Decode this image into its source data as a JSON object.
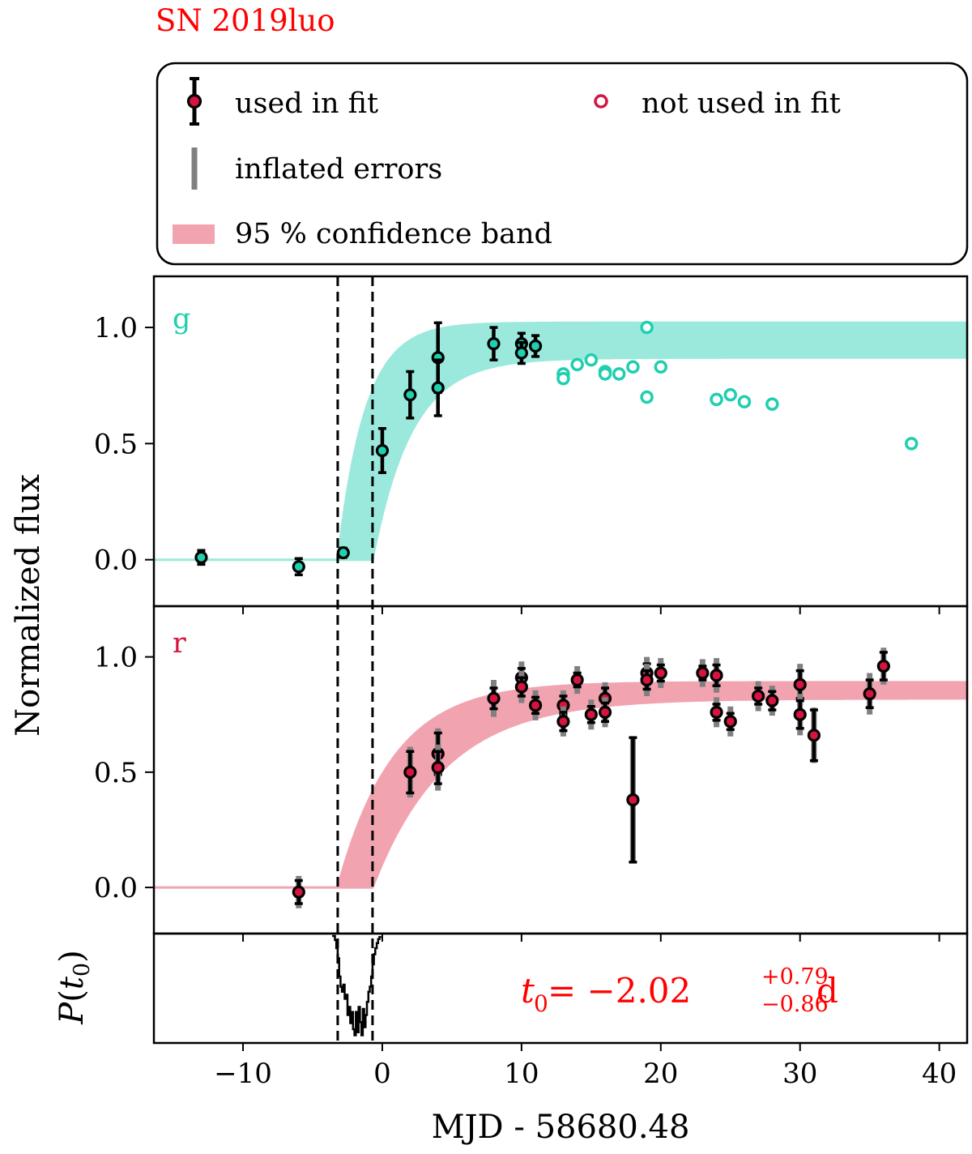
{
  "title": "SN 2019luo",
  "colors": {
    "title": "#ff0000",
    "g_point": "#1fcfb0",
    "g_band": "#9be9dc",
    "r_point": "#d5143f",
    "r_band": "#f2a3b0",
    "errorbar": "#000000",
    "inflated": "#808080",
    "annotation": "#ff0000"
  },
  "legend": {
    "used": "used in fit",
    "not_used": "not used in fit",
    "inflated": "inflated errors",
    "band": "95 % confidence band"
  },
  "chart_data": [
    {
      "type": "scatter",
      "panel": "g",
      "label": "g",
      "xlim": [
        -16.4,
        42
      ],
      "ylim": [
        -0.2,
        1.22
      ],
      "yticks": [
        0.0,
        0.5,
        1.0
      ],
      "ytick_labels": [
        "0.0",
        "0.5",
        "1.0"
      ],
      "used_in_fit": [
        {
          "x": -13.0,
          "y": 0.01,
          "err": 0.03
        },
        {
          "x": -6.0,
          "y": -0.03,
          "err": 0.035
        },
        {
          "x": -2.8,
          "y": 0.03,
          "err": 0.02
        },
        {
          "x": 0.0,
          "y": 0.47,
          "err": 0.095
        },
        {
          "x": 2.0,
          "y": 0.71,
          "err": 0.1
        },
        {
          "x": 4.0,
          "y": 0.87,
          "err": 0.15
        },
        {
          "x": 4.0,
          "y": 0.74,
          "err": 0.12
        },
        {
          "x": 8.0,
          "y": 0.93,
          "err": 0.07
        },
        {
          "x": 10.0,
          "y": 0.93,
          "err": 0.045
        },
        {
          "x": 10.0,
          "y": 0.89,
          "err": 0.045
        },
        {
          "x": 11.0,
          "y": 0.92,
          "err": 0.045
        }
      ],
      "not_used": [
        {
          "x": 13.0,
          "y": 0.8
        },
        {
          "x": 13.0,
          "y": 0.78
        },
        {
          "x": 14.0,
          "y": 0.84
        },
        {
          "x": 15.0,
          "y": 0.86
        },
        {
          "x": 16.0,
          "y": 0.81
        },
        {
          "x": 16.0,
          "y": 0.8
        },
        {
          "x": 17.0,
          "y": 0.8
        },
        {
          "x": 18.0,
          "y": 0.83
        },
        {
          "x": 19.0,
          "y": 1.0
        },
        {
          "x": 19.0,
          "y": 0.7
        },
        {
          "x": 20.0,
          "y": 0.83
        },
        {
          "x": 24.0,
          "y": 0.69
        },
        {
          "x": 25.0,
          "y": 0.71
        },
        {
          "x": 26.0,
          "y": 0.68
        },
        {
          "x": 28.0,
          "y": 0.67
        },
        {
          "x": 38.0,
          "y": 0.5
        }
      ],
      "band": {
        "t_early": -3.2,
        "t_late": -0.7,
        "plateau_lower": 0.87,
        "plateau_upper": 1.02,
        "tau_lower": 2.8,
        "tau_upper": 2.0
      }
    },
    {
      "type": "scatter",
      "panel": "r",
      "label": "r",
      "xlim": [
        -16.4,
        42
      ],
      "ylim": [
        -0.2,
        1.22
      ],
      "yticks": [
        0.0,
        0.5,
        1.0
      ],
      "ytick_labels": [
        "0.0",
        "0.5",
        "1.0"
      ],
      "used_in_fit": [
        {
          "x": -6.0,
          "y": -0.02,
          "err": 0.05,
          "inflated": 0.07
        },
        {
          "x": 2.0,
          "y": 0.5,
          "err": 0.09,
          "inflated": 0.11
        },
        {
          "x": 4.0,
          "y": 0.58,
          "err": 0.09,
          "inflated": 0.11
        },
        {
          "x": 4.0,
          "y": 0.52,
          "err": 0.07,
          "inflated": 0.1
        },
        {
          "x": 8.0,
          "y": 0.82,
          "err": 0.045,
          "inflated": 0.08
        },
        {
          "x": 10.0,
          "y": 0.91,
          "err": 0.04,
          "inflated": 0.07
        },
        {
          "x": 10.0,
          "y": 0.87,
          "err": 0.04,
          "inflated": 0.07
        },
        {
          "x": 11.0,
          "y": 0.79,
          "err": 0.035,
          "inflated": 0.065
        },
        {
          "x": 13.0,
          "y": 0.79,
          "err": 0.04,
          "inflated": 0.065
        },
        {
          "x": 13.0,
          "y": 0.72,
          "err": 0.04,
          "inflated": 0.065
        },
        {
          "x": 14.0,
          "y": 0.9,
          "err": 0.03,
          "inflated": 0.06
        },
        {
          "x": 15.0,
          "y": 0.75,
          "err": 0.035,
          "inflated": 0.065
        },
        {
          "x": 16.0,
          "y": 0.82,
          "err": 0.045,
          "inflated": 0.07
        },
        {
          "x": 16.0,
          "y": 0.76,
          "err": 0.04,
          "inflated": 0.065
        },
        {
          "x": 18.0,
          "y": 0.38,
          "err": 0.27,
          "inflated": 0.27
        },
        {
          "x": 19.0,
          "y": 0.93,
          "err": 0.04,
          "inflated": 0.07
        },
        {
          "x": 19.0,
          "y": 0.9,
          "err": 0.04,
          "inflated": 0.07
        },
        {
          "x": 20.0,
          "y": 0.93,
          "err": 0.035,
          "inflated": 0.065
        },
        {
          "x": 23.0,
          "y": 0.93,
          "err": 0.03,
          "inflated": 0.06
        },
        {
          "x": 24.0,
          "y": 0.92,
          "err": 0.045,
          "inflated": 0.075
        },
        {
          "x": 24.0,
          "y": 0.76,
          "err": 0.035,
          "inflated": 0.065
        },
        {
          "x": 25.0,
          "y": 0.72,
          "err": 0.035,
          "inflated": 0.065
        },
        {
          "x": 27.0,
          "y": 0.83,
          "err": 0.035,
          "inflated": 0.065
        },
        {
          "x": 28.0,
          "y": 0.81,
          "err": 0.04,
          "inflated": 0.065
        },
        {
          "x": 30.0,
          "y": 0.88,
          "err": 0.06,
          "inflated": 0.09
        },
        {
          "x": 30.0,
          "y": 0.75,
          "err": 0.06,
          "inflated": 0.09
        },
        {
          "x": 31.0,
          "y": 0.66,
          "err": 0.11,
          "inflated": 0.12
        },
        {
          "x": 35.0,
          "y": 0.84,
          "err": 0.06,
          "inflated": 0.09
        },
        {
          "x": 36.0,
          "y": 0.96,
          "err": 0.06,
          "inflated": 0.08
        }
      ],
      "not_used": [],
      "band": {
        "t_early": -3.2,
        "t_late": -0.7,
        "plateau_lower": 0.82,
        "plateau_upper": 0.89,
        "tau_lower": 5.2,
        "tau_upper": 4.0
      }
    },
    {
      "type": "line",
      "panel": "posterior",
      "ylabel_main": "P",
      "ylabel_arg": "t",
      "ylabel_sub": "0",
      "x": [
        -3.6,
        -3.4,
        -3.3,
        -3.2,
        -3.1,
        -3.0,
        -2.9,
        -2.8,
        -2.7,
        -2.6,
        -2.5,
        -2.4,
        -2.3,
        -2.2,
        -2.1,
        -2.0,
        -1.9,
        -1.8,
        -1.7,
        -1.6,
        -1.5,
        -1.4,
        -1.3,
        -1.2,
        -1.1,
        -1.0,
        -0.9,
        -0.8,
        -0.7,
        -0.6,
        -0.5,
        -0.4,
        -0.3,
        -0.2,
        -0.15
      ],
      "y": [
        0.0,
        0.04,
        0.12,
        0.22,
        0.4,
        0.5,
        0.55,
        0.48,
        0.62,
        0.58,
        0.78,
        0.7,
        0.86,
        0.75,
        0.92,
        0.98,
        0.75,
        0.95,
        0.7,
        0.85,
        0.98,
        0.72,
        0.9,
        0.78,
        0.65,
        0.55,
        0.5,
        0.4,
        0.28,
        0.18,
        0.12,
        0.07,
        0.03,
        0.01,
        0.0
      ]
    }
  ],
  "shared_x": {
    "xlabel": "MJD - 58680.48",
    "xticks": [
      -10,
      0,
      10,
      20,
      30,
      40
    ],
    "xtick_labels": [
      "−10",
      "0",
      "10",
      "20",
      "30",
      "40"
    ],
    "vlines": [
      -3.2,
      -0.7
    ]
  },
  "ylabel": "Normalized flux",
  "annotation": {
    "t_symbol": "t",
    "t_sub": "0",
    "equals_value": " = −2.02",
    "upper": "+0.79",
    "lower": "−0.86",
    "unit": "d"
  }
}
